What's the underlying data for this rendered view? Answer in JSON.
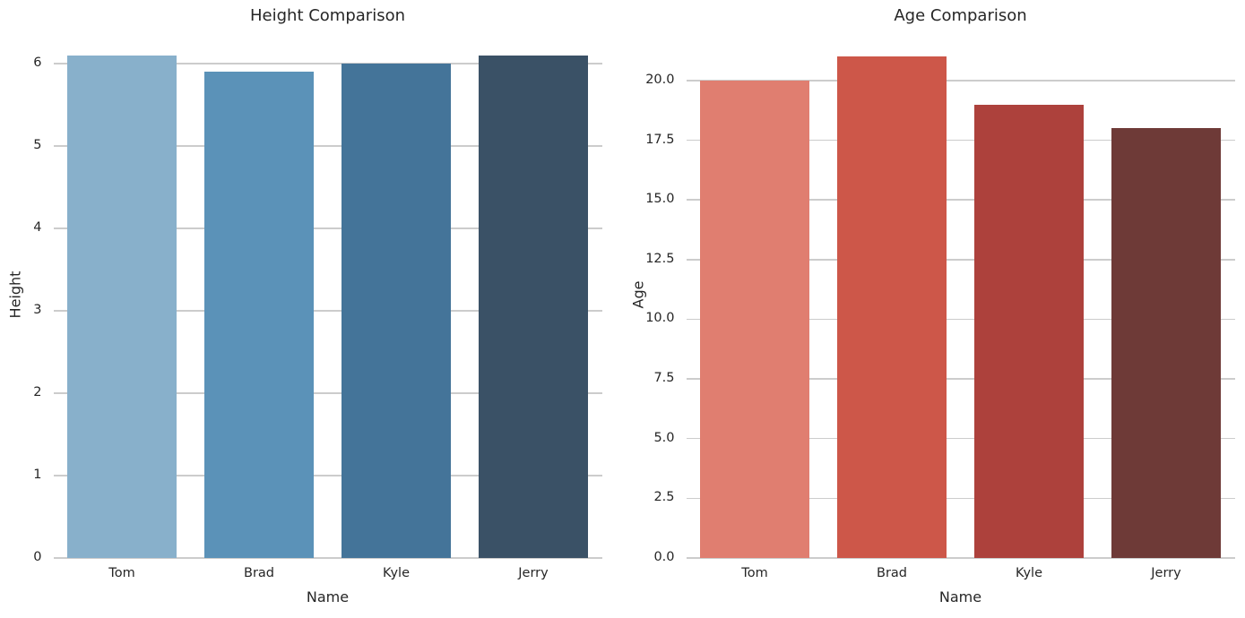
{
  "style": {
    "background": "#ffffff",
    "grid_color": "#cccccc",
    "text_color": "#262626"
  },
  "chart_data": [
    {
      "type": "bar",
      "title": "Height Comparison",
      "xlabel": "Name",
      "ylabel": "Height",
      "categories": [
        "Tom",
        "Brad",
        "Kyle",
        "Jerry"
      ],
      "values": [
        6.1,
        5.9,
        6.0,
        6.1
      ],
      "bar_colors": [
        "#88b0cb",
        "#5b92b8",
        "#447499",
        "#3a5166"
      ],
      "ylim": [
        0,
        6.4
      ],
      "grid": true,
      "legend": "none",
      "yticks": {
        "values": [
          0,
          1,
          2,
          3,
          4,
          5,
          6
        ],
        "labels": [
          "0",
          "1",
          "2",
          "3",
          "4",
          "5",
          "6"
        ]
      }
    },
    {
      "type": "bar",
      "title": "Age Comparison",
      "xlabel": "Name",
      "ylabel": "Age",
      "categories": [
        "Tom",
        "Brad",
        "Kyle",
        "Jerry"
      ],
      "values": [
        20,
        21,
        19,
        18
      ],
      "bar_colors": [
        "#e07e70",
        "#cd5749",
        "#ad413c",
        "#6e3a37"
      ],
      "ylim": [
        0,
        22.1
      ],
      "grid": true,
      "legend": "none",
      "yticks": {
        "values": [
          0,
          2.5,
          5,
          7.5,
          10,
          12.5,
          15,
          17.5,
          20
        ],
        "labels": [
          "0.0",
          "2.5",
          "5.0",
          "7.5",
          "10.0",
          "12.5",
          "15.0",
          "17.5",
          "20.0"
        ]
      }
    }
  ]
}
